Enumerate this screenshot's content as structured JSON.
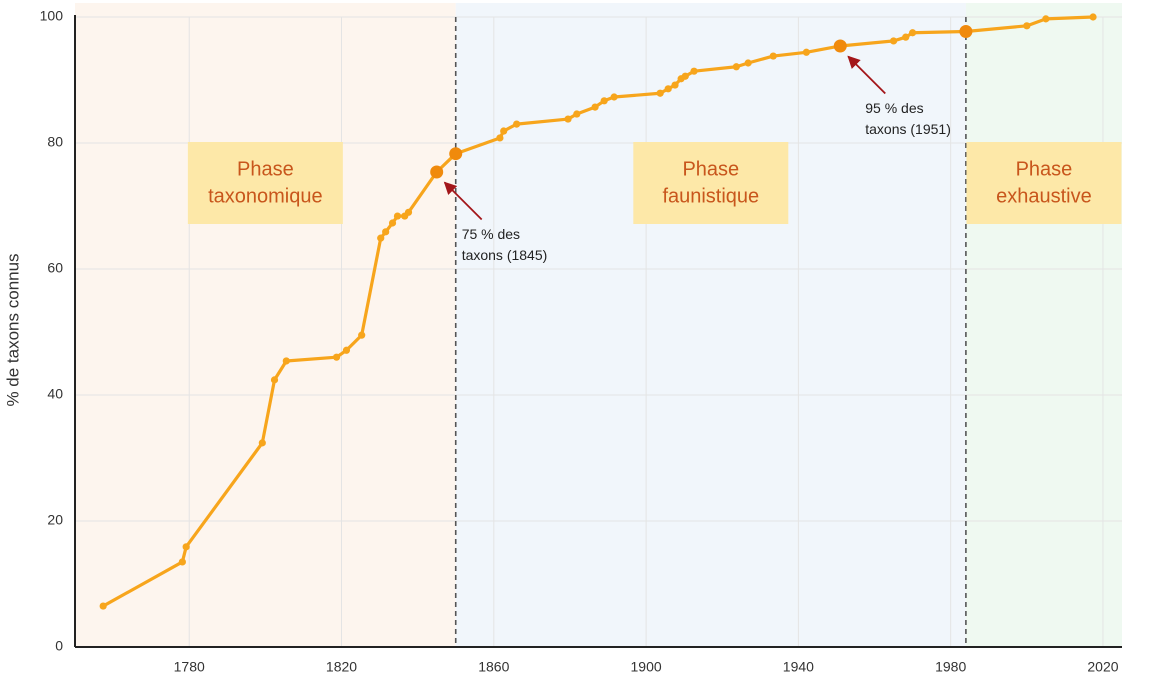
{
  "chart_data": {
    "type": "line",
    "ylabel": "% de taxons connus",
    "color": "#f7a51c",
    "highlight_color": "#f08a0c",
    "grid": true,
    "xlim": [
      1750,
      2025
    ],
    "ylim": [
      0,
      100
    ],
    "xticks": [
      1780,
      1820,
      1860,
      1900,
      1940,
      1980,
      2020
    ],
    "yticks": [
      0,
      20,
      40,
      60,
      80,
      100
    ],
    "x": [
      1757.4,
      1778.2,
      1779.2,
      1799.2,
      1802.4,
      1805.5,
      1818.7,
      1821.3,
      1825.3,
      1830.3,
      1831.6,
      1833.4,
      1834.7,
      1836.6,
      1837.6,
      1845,
      1850,
      1861.6,
      1862.6,
      1866,
      1879.5,
      1881.8,
      1886.6,
      1889,
      1891.6,
      1903.7,
      1905.8,
      1907.6,
      1909.2,
      1910.3,
      1912.6,
      1923.7,
      1926.8,
      1933.4,
      1942.1,
      1951,
      1965,
      1968.2,
      1970,
      1984,
      2000,
      2005,
      2017.4
    ],
    "values": [
      6.5,
      13.5,
      15.9,
      32.4,
      42.4,
      45.4,
      46.0,
      47.1,
      49.5,
      64.9,
      65.9,
      67.3,
      68.4,
      68.4,
      69.0,
      75.4,
      78.3,
      80.8,
      81.9,
      83.0,
      83.8,
      84.6,
      85.7,
      86.7,
      87.3,
      87.9,
      88.6,
      89.2,
      90.2,
      90.6,
      91.4,
      92.1,
      92.7,
      93.8,
      94.4,
      95.4,
      96.2,
      96.8,
      97.5,
      97.7,
      98.6,
      99.7,
      100
    ],
    "phases": [
      {
        "lines": [
          "Phase",
          "taxonomique"
        ],
        "start": 1750,
        "end": 1850,
        "color": "#fdf5ee"
      },
      {
        "lines": [
          "Phase",
          "faunistique"
        ],
        "start": 1850,
        "end": 1984,
        "color": "#f1f6fb"
      },
      {
        "lines": [
          "Phase",
          "exhaustive"
        ],
        "start": 1984,
        "end": 2025,
        "color": "#eff9f1"
      }
    ],
    "annotations": [
      {
        "lines": [
          "75 % des",
          "taxons (1845)"
        ],
        "x": 1845,
        "y": 75
      },
      {
        "lines": [
          "95 % des",
          "taxons (1951)"
        ],
        "x": 1951,
        "y": 95
      }
    ]
  }
}
